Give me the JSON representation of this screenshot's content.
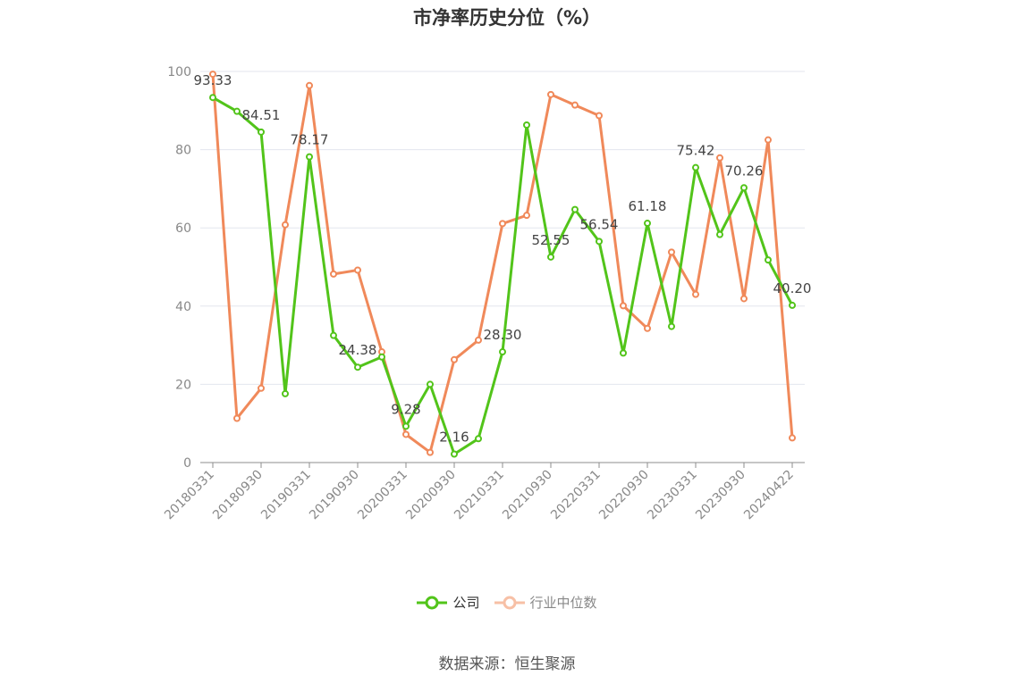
{
  "chart_data": {
    "type": "line",
    "title": "市净率历史分位（%）",
    "source": "数据来源：恒生聚源",
    "ylim": [
      0,
      100
    ],
    "yticks": [
      0,
      20,
      40,
      60,
      80,
      100
    ],
    "grid": true,
    "legend_position": "bottom",
    "x_tick_labels": [
      "20180331",
      "20180930",
      "20190331",
      "20190930",
      "20200331",
      "20200930",
      "20210331",
      "20210930",
      "20220331",
      "20220930",
      "20230331",
      "20230930",
      "20240422"
    ],
    "x": [
      "20180331",
      "20180630",
      "20180930",
      "20181231",
      "20190331",
      "20190630",
      "20190930",
      "20191231",
      "20200331",
      "20200630",
      "20200930",
      "20201231",
      "20210331",
      "20210630",
      "20210930",
      "20211231",
      "20220331",
      "20220630",
      "20220930",
      "20221231",
      "20230331",
      "20230630",
      "20230930",
      "20231231",
      "20240422"
    ],
    "series": [
      {
        "name": "公司",
        "color": "#52c41a",
        "values": [
          93.33,
          89.8,
          84.51,
          17.6,
          78.17,
          32.5,
          24.38,
          27.0,
          9.28,
          20.0,
          2.16,
          6.1,
          28.3,
          86.3,
          52.55,
          64.7,
          56.54,
          28.0,
          61.18,
          34.8,
          75.42,
          58.3,
          70.26,
          51.8,
          40.2
        ],
        "labels": [
          "93.33",
          "",
          "84.51",
          "",
          "78.17",
          "",
          "24.38",
          "",
          "9.28",
          "",
          "2.16",
          "",
          "28.30",
          "",
          "52.55",
          "",
          "56.54",
          "",
          "61.18",
          "",
          "75.42",
          "",
          "70.26",
          "",
          "40.20"
        ]
      },
      {
        "name": "行业中位数",
        "color": "#f0895a",
        "values": [
          99.3,
          11.3,
          19.0,
          60.8,
          96.4,
          48.2,
          49.2,
          28.3,
          7.2,
          2.6,
          26.3,
          31.3,
          61.1,
          63.2,
          94.1,
          91.4,
          88.7,
          40.1,
          34.3,
          53.8,
          43.0,
          77.9,
          41.9,
          82.5,
          6.3
        ]
      }
    ]
  }
}
